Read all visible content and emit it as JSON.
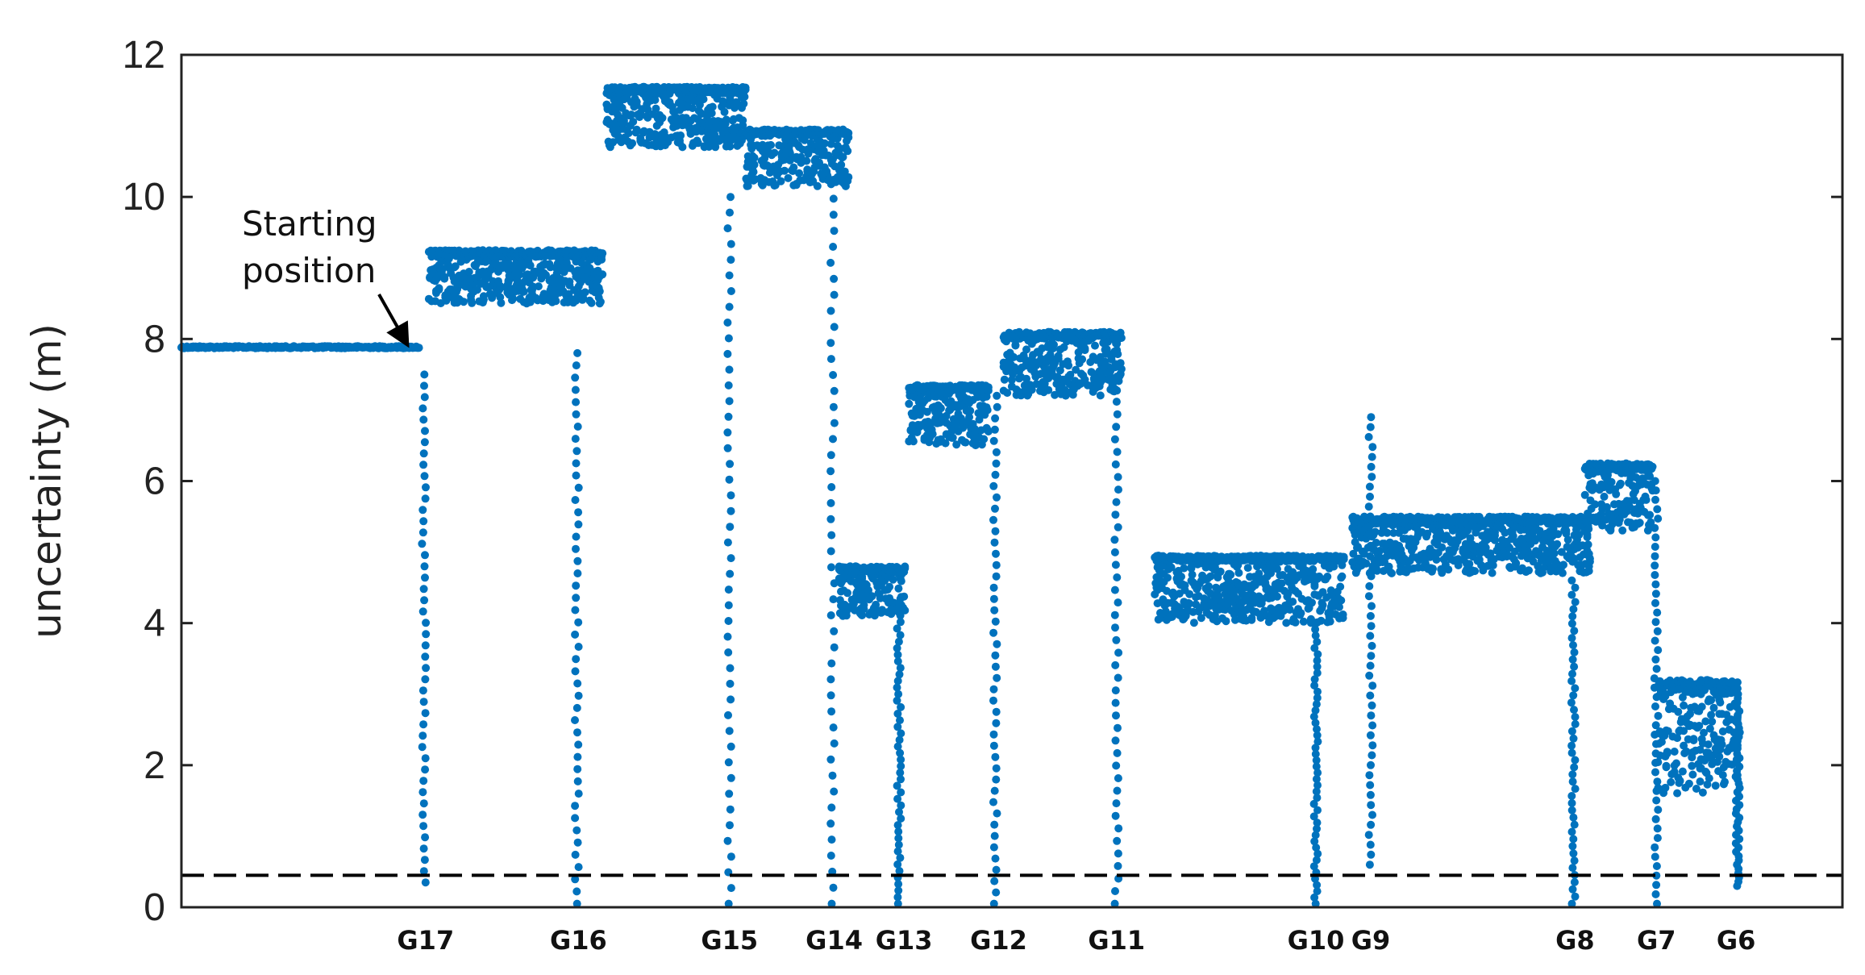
{
  "chart_data": {
    "type": "scatter",
    "title": "",
    "xlabel": "",
    "ylabel": "uncertainty (m)",
    "ylim": [
      0,
      12
    ],
    "yticks": [
      0,
      2,
      4,
      6,
      8,
      10,
      12
    ],
    "xlim": [
      0,
      1000
    ],
    "grid": false,
    "marker_color": "#0072BD",
    "reference_line": {
      "y": 0.45,
      "style": "dashed",
      "color": "#000000"
    },
    "annotation": {
      "text_line1": "Starting",
      "text_line2": "position",
      "x": 139,
      "y": 7.85
    },
    "xtick_markers": [
      {
        "label": "G17",
        "x": 147
      },
      {
        "label": "G16",
        "x": 239
      },
      {
        "label": "G15",
        "x": 330
      },
      {
        "label": "G14",
        "x": 393
      },
      {
        "label": "G13",
        "x": 435
      },
      {
        "label": "G12",
        "x": 492
      },
      {
        "label": "G11",
        "x": 563
      },
      {
        "label": "G10",
        "x": 683
      },
      {
        "label": "G9",
        "x": 716
      },
      {
        "label": "G8",
        "x": 839
      },
      {
        "label": "G7",
        "x": 888
      },
      {
        "label": "G6",
        "x": 936
      }
    ],
    "series": [
      {
        "segments": [
          {
            "x0": 0,
            "x1": 143,
            "lo": 7.8,
            "hi": 7.9,
            "noise": 0.03
          },
          {
            "x0": 149,
            "x1": 254,
            "lo": 8.5,
            "hi": 9.25,
            "noise": 0.1
          },
          {
            "x0": 256,
            "x1": 340,
            "lo": 10.7,
            "hi": 11.55,
            "noise": 0.1
          },
          {
            "x0": 340,
            "x1": 402,
            "lo": 10.15,
            "hi": 10.95,
            "noise": 0.08
          },
          {
            "x0": 396,
            "x1": 436,
            "lo": 4.1,
            "hi": 4.8,
            "noise": 0.08
          },
          {
            "x0": 438,
            "x1": 486,
            "lo": 6.5,
            "hi": 7.35,
            "noise": 0.08
          },
          {
            "x0": 495,
            "x1": 566,
            "lo": 7.2,
            "hi": 8.1,
            "noise": 0.1
          },
          {
            "x0": 586,
            "x1": 700,
            "lo": 4.0,
            "hi": 4.95,
            "noise": 0.08
          },
          {
            "x0": 705,
            "x1": 848,
            "lo": 4.7,
            "hi": 5.5,
            "noise": 0.1
          },
          {
            "x0": 845,
            "x1": 886,
            "lo": 5.3,
            "hi": 6.25,
            "noise": 0.1
          },
          {
            "x0": 889,
            "x1": 937,
            "lo": 1.6,
            "hi": 3.2,
            "noise": 0.2
          }
        ],
        "drops": [
          {
            "x": 146,
            "from": 7.5,
            "to": 0.35
          },
          {
            "x": 238,
            "from": 7.8,
            "to": 0.05
          },
          {
            "x": 330,
            "from": 10.0,
            "to": 0.05
          },
          {
            "x": 392,
            "from": 10.2,
            "to": 0.05
          },
          {
            "x": 432,
            "from": 4.2,
            "to": 0.05
          },
          {
            "x": 490,
            "from": 7.2,
            "to": 0.05
          },
          {
            "x": 563,
            "from": 8.0,
            "to": 0.05
          },
          {
            "x": 683,
            "from": 4.0,
            "to": 0.05
          },
          {
            "x": 716,
            "from": 6.9,
            "to": 0.6
          },
          {
            "x": 838,
            "from": 4.6,
            "to": 0.05
          },
          {
            "x": 888,
            "from": 6.0,
            "to": 0.05
          },
          {
            "x": 937,
            "from": 3.0,
            "to": 0.3
          }
        ]
      }
    ]
  }
}
